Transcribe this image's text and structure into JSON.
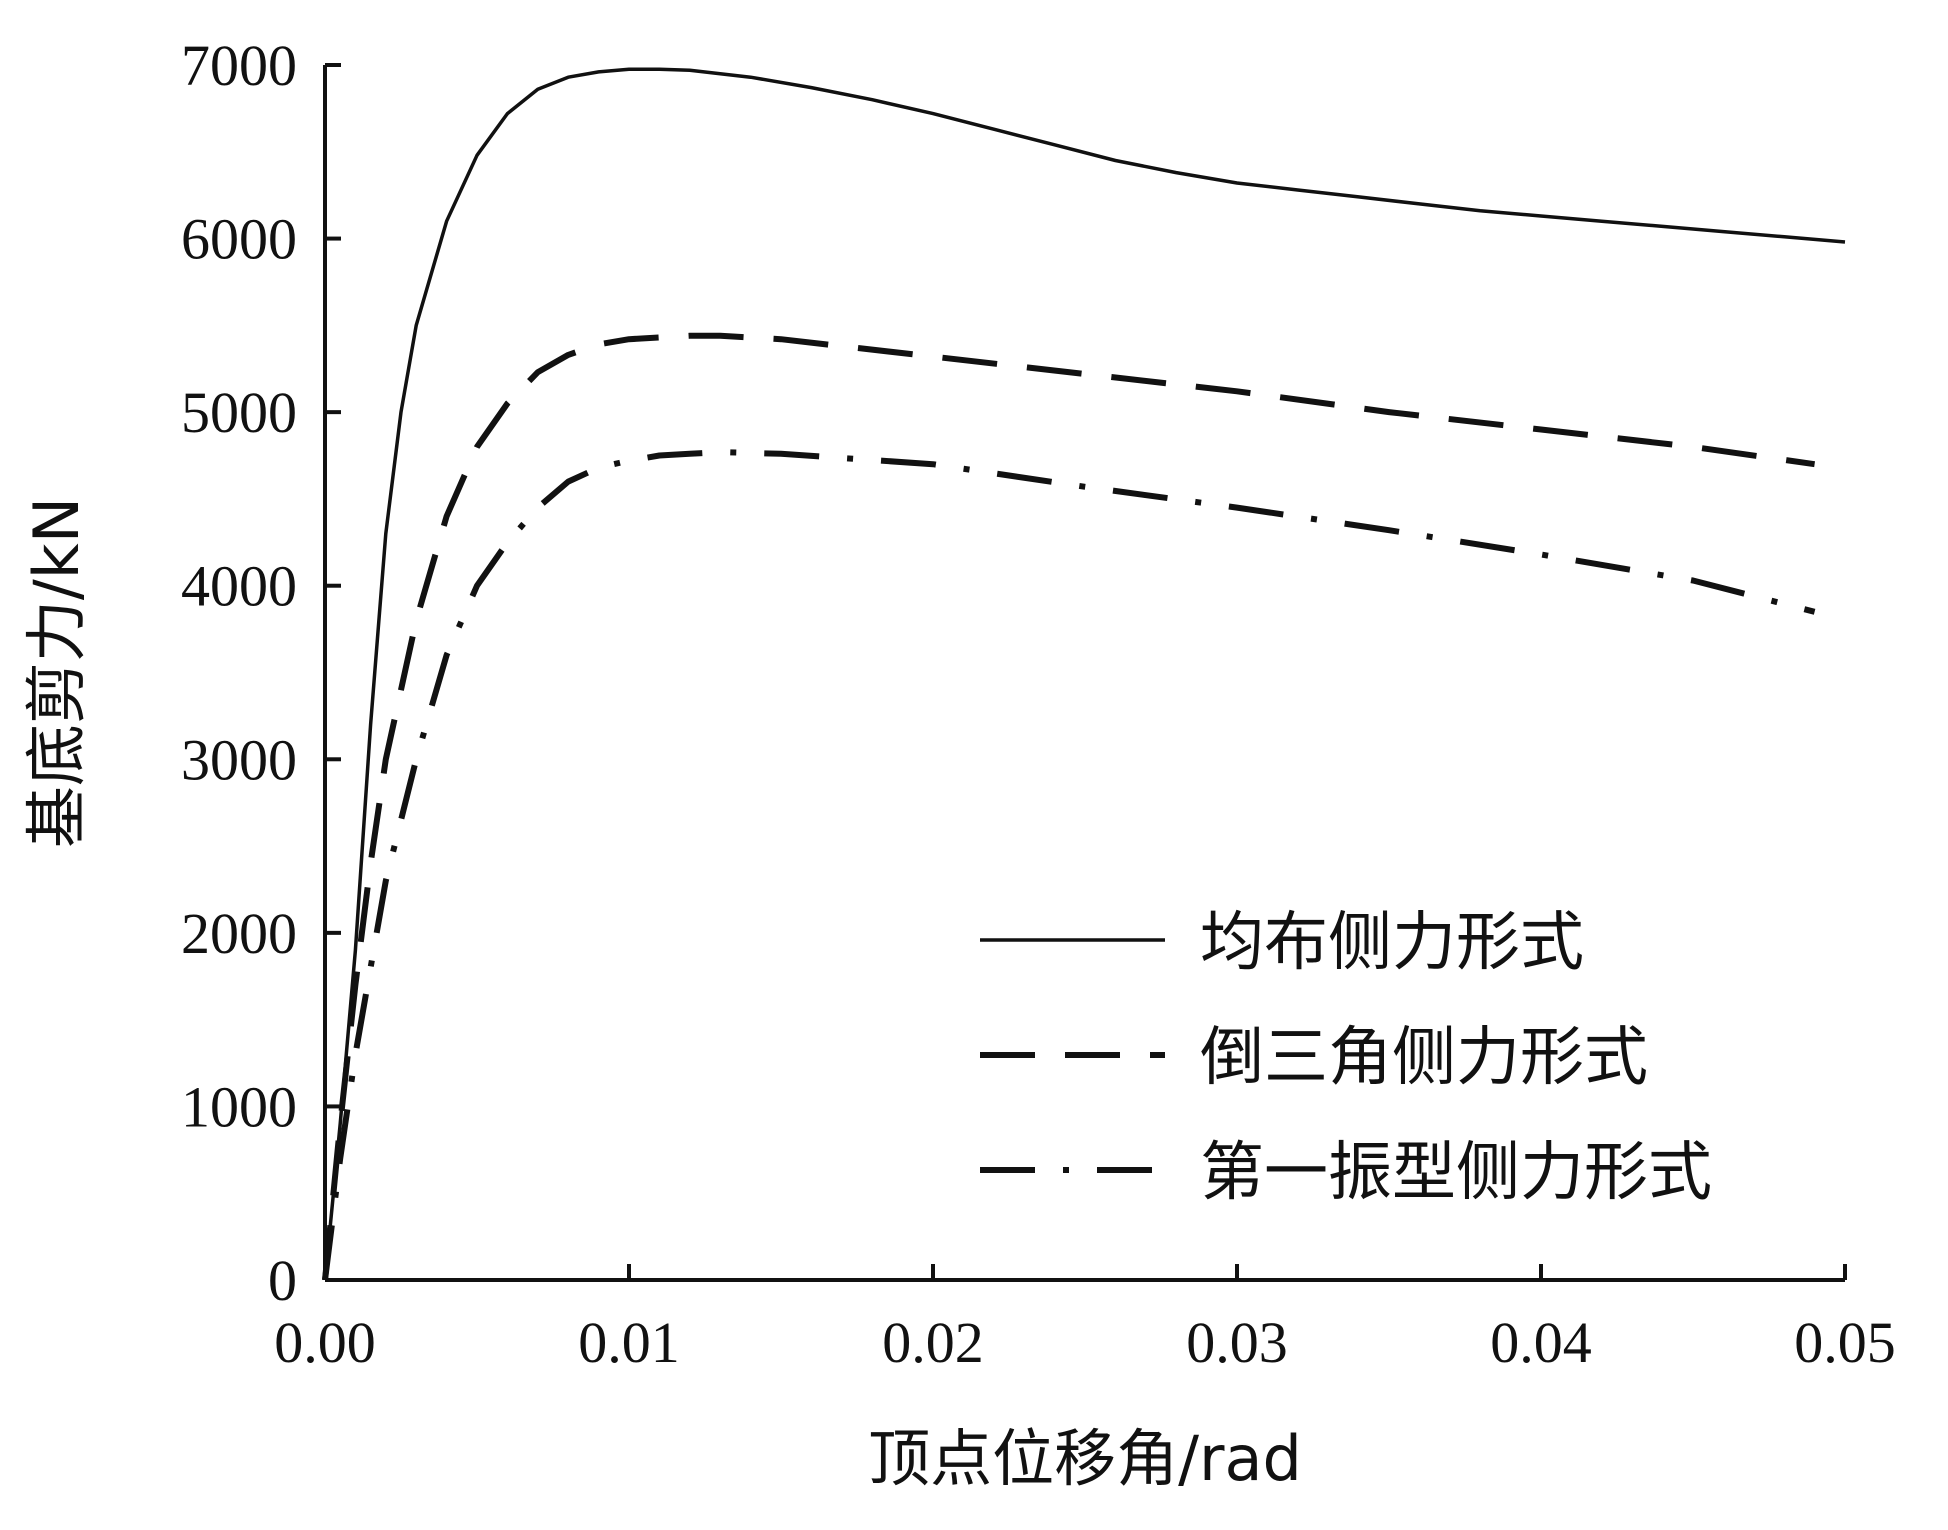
{
  "chart_data": {
    "type": "line",
    "xlabel": "顶点位移角/rad",
    "ylabel": "基底剪力/kN",
    "xlim": [
      0,
      0.05
    ],
    "ylim": [
      0,
      7000
    ],
    "xticks": [
      "0.00",
      "0.01",
      "0.02",
      "0.03",
      "0.04",
      "0.05"
    ],
    "yticks": [
      "0",
      "1000",
      "2000",
      "3000",
      "4000",
      "5000",
      "6000",
      "7000"
    ],
    "grid": false,
    "legend_position": "lower-right",
    "series": [
      {
        "name": "均布侧力形式",
        "style": "solid",
        "x": [
          0,
          0.0005,
          0.001,
          0.0015,
          0.002,
          0.0025,
          0.003,
          0.004,
          0.005,
          0.006,
          0.007,
          0.008,
          0.009,
          0.01,
          0.011,
          0.012,
          0.014,
          0.016,
          0.018,
          0.02,
          0.022,
          0.024,
          0.026,
          0.028,
          0.03,
          0.032,
          0.034,
          0.036,
          0.038,
          0.04,
          0.042,
          0.044,
          0.046,
          0.048,
          0.05
        ],
        "y": [
          0,
          900,
          1900,
          3200,
          4300,
          5000,
          5500,
          6100,
          6480,
          6720,
          6860,
          6930,
          6960,
          6975,
          6975,
          6970,
          6930,
          6870,
          6800,
          6720,
          6630,
          6540,
          6450,
          6380,
          6320,
          6280,
          6240,
          6200,
          6160,
          6130,
          6100,
          6070,
          6040,
          6010,
          5980
        ]
      },
      {
        "name": "倒三角侧力形式",
        "style": "dashed",
        "x": [
          0,
          0.0005,
          0.001,
          0.0015,
          0.002,
          0.003,
          0.004,
          0.005,
          0.006,
          0.007,
          0.008,
          0.009,
          0.01,
          0.011,
          0.012,
          0.013,
          0.015,
          0.02,
          0.025,
          0.03,
          0.035,
          0.04,
          0.045,
          0.049
        ],
        "y": [
          0,
          900,
          1700,
          2400,
          3000,
          3800,
          4400,
          4800,
          5050,
          5230,
          5330,
          5390,
          5420,
          5430,
          5440,
          5440,
          5420,
          5320,
          5220,
          5120,
          5000,
          4900,
          4800,
          4700
        ]
      },
      {
        "name": "第一振型侧力形式",
        "style": "dash-dot",
        "x": [
          0,
          0.0005,
          0.001,
          0.0015,
          0.002,
          0.003,
          0.004,
          0.005,
          0.006,
          0.007,
          0.008,
          0.009,
          0.01,
          0.011,
          0.012,
          0.013,
          0.015,
          0.02,
          0.025,
          0.03,
          0.035,
          0.04,
          0.045,
          0.049
        ],
        "y": [
          0,
          700,
          1300,
          1800,
          2300,
          3000,
          3600,
          4000,
          4250,
          4450,
          4600,
          4680,
          4720,
          4750,
          4760,
          4770,
          4760,
          4700,
          4570,
          4450,
          4320,
          4180,
          4030,
          3850
        ]
      }
    ]
  }
}
